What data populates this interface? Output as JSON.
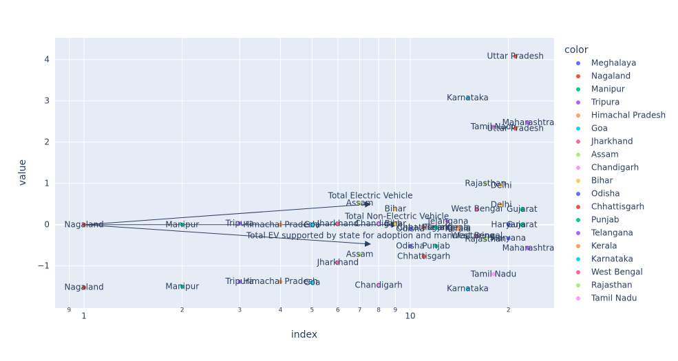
{
  "chart_data": {
    "type": "scatter",
    "x_label": "index",
    "y_label": "value",
    "legend_title": "color",
    "xscale": "log",
    "grid": true,
    "legend": "right",
    "xlim": [
      0.815,
      27.6
    ],
    "ylim": [
      -2.02,
      4.53
    ],
    "xticks": [
      {
        "value": 0.9,
        "label": "9"
      },
      1,
      2,
      3,
      4,
      5,
      6,
      7,
      8,
      9,
      10,
      {
        "value": 20,
        "label": "2"
      }
    ],
    "yticks": [
      {
        "value": -1,
        "label": "−1"
      },
      0,
      1,
      2,
      3,
      4
    ],
    "series": [
      {
        "name": "Meghalaya",
        "color": "#636efa",
        "x": [],
        "y": []
      },
      {
        "name": "Nagaland",
        "color": "#EF553B",
        "x": [
          1,
          1
        ],
        "y": [
          0,
          -1.52
        ]
      },
      {
        "name": "Manipur",
        "color": "#00cc96",
        "x": [
          2,
          2
        ],
        "y": [
          0,
          -1.5
        ]
      },
      {
        "name": "Tripura",
        "color": "#ab63fa",
        "x": [
          3,
          3
        ],
        "y": [
          0.03,
          -1.38
        ]
      },
      {
        "name": "Himachal Pradesh",
        "color": "#FFA15A",
        "x": [
          4,
          4
        ],
        "y": [
          0,
          -1.38
        ]
      },
      {
        "name": "Goa",
        "color": "#19d3f3",
        "x": [
          5,
          5
        ],
        "y": [
          0,
          -1.4
        ]
      },
      {
        "name": "Jharkhand",
        "color": "#FF6692",
        "x": [
          6,
          6
        ],
        "y": [
          0.02,
          -0.92
        ]
      },
      {
        "name": "Assam",
        "color": "#B6E880",
        "x": [
          7,
          7
        ],
        "y": [
          0.52,
          -0.72
        ]
      },
      {
        "name": "Chandigarh",
        "color": "#FF97FF",
        "x": [
          8,
          8
        ],
        "y": [
          0.02,
          -1.47
        ]
      },
      {
        "name": "Bihar",
        "color": "#FECB52",
        "x": [
          9,
          9
        ],
        "y": [
          0.38,
          0.02
        ]
      },
      {
        "name": "Odisha",
        "color": "#636efa",
        "x": [
          10,
          10
        ],
        "y": [
          -0.52,
          -0.1
        ]
      },
      {
        "name": "Chhattisgarh",
        "color": "#EF553B",
        "x": [
          11,
          11
        ],
        "y": [
          -0.77,
          -0.07
        ]
      },
      {
        "name": "Punjab",
        "color": "#00cc96",
        "x": [
          12,
          12
        ],
        "y": [
          -0.52,
          -0.07
        ]
      },
      {
        "name": "Telangana",
        "color": "#ab63fa",
        "x": [
          13,
          13
        ],
        "y": [
          0.08,
          -0.07
        ]
      },
      {
        "name": "Kerala",
        "color": "#FFA15A",
        "x": [
          14,
          14
        ],
        "y": [
          -0.07,
          -0.1
        ]
      },
      {
        "name": "Karnataka",
        "color": "#19d3f3",
        "x": [
          15,
          15
        ],
        "y": [
          3.07,
          -1.55
        ]
      },
      {
        "name": "West Bengal",
        "color": "#FF6692",
        "x": [
          16,
          16
        ],
        "y": [
          0.38,
          -0.27
        ]
      },
      {
        "name": "Rajasthan",
        "color": "#B6E880",
        "x": [
          17,
          17
        ],
        "y": [
          1.0,
          -0.35
        ]
      },
      {
        "name": "Tamil Nadu",
        "color": "#FF97FF",
        "x": [
          18,
          18
        ],
        "y": [
          2.37,
          -1.2
        ]
      },
      {
        "name": "Delhi",
        "color": "#FECB52",
        "x": [
          19,
          19
        ],
        "y": [
          0.95,
          0.48
        ]
      },
      {
        "name": "Haryana",
        "color": "#636efa",
        "x": [
          20,
          20
        ],
        "y": [
          0,
          -0.33
        ]
      },
      {
        "name": "Uttar Pradesh",
        "color": "#EF553B",
        "x": [
          21,
          21
        ],
        "y": [
          4.08,
          2.33
        ]
      },
      {
        "name": "Gujarat",
        "color": "#00cc96",
        "x": [
          22,
          22
        ],
        "y": [
          0.37,
          0
        ]
      },
      {
        "name": "Maharashtra",
        "color": "#ab63fa",
        "x": [
          23,
          23
        ],
        "y": [
          2.47,
          -0.57
        ]
      }
    ],
    "arrows": [
      {
        "text": "Total Electric Vehicle",
        "x0": 1,
        "y0": 0,
        "x": 7.55,
        "y": 0.5
      },
      {
        "text": "Total Non-Electric Vehicle",
        "x0": 1,
        "y0": 0,
        "x": 9.1,
        "y": 0
      },
      {
        "text": "Total EV supported by state for adoption and manufacturing",
        "x0": 1,
        "y0": 0,
        "x": 7.55,
        "y": -0.47
      }
    ]
  }
}
